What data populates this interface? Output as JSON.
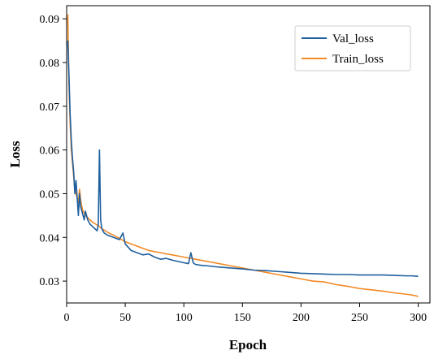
{
  "chart_data": {
    "type": "line",
    "title": "",
    "xlabel": "Epoch",
    "ylabel": "Loss",
    "xlim": [
      0,
      310
    ],
    "ylim": [
      0.025,
      0.093
    ],
    "xticks": [
      0,
      50,
      100,
      150,
      200,
      250,
      300
    ],
    "yticks": [
      0.03,
      0.04,
      0.05,
      0.06,
      0.07,
      0.08,
      0.09
    ],
    "grid": false,
    "legend_position": "top-right",
    "series": [
      {
        "name": "Val_loss",
        "color": "#1f5f9e",
        "x": [
          1,
          2,
          3,
          4,
          5,
          6,
          7,
          8,
          9,
          10,
          11,
          12,
          13,
          14,
          15,
          16,
          18,
          20,
          22,
          24,
          26,
          27,
          28,
          29,
          30,
          32,
          35,
          40,
          45,
          48,
          50,
          55,
          60,
          65,
          70,
          75,
          80,
          85,
          90,
          95,
          100,
          104,
          106,
          108,
          110,
          115,
          120,
          130,
          140,
          150,
          160,
          170,
          180,
          190,
          200,
          210,
          220,
          230,
          240,
          250,
          260,
          270,
          280,
          290,
          295,
          300
        ],
        "y": [
          0.085,
          0.077,
          0.068,
          0.062,
          0.058,
          0.055,
          0.05,
          0.053,
          0.049,
          0.045,
          0.05,
          0.047,
          0.046,
          0.045,
          0.044,
          0.046,
          0.044,
          0.043,
          0.0425,
          0.042,
          0.0415,
          0.043,
          0.06,
          0.044,
          0.042,
          0.041,
          0.0405,
          0.04,
          0.0395,
          0.041,
          0.0385,
          0.037,
          0.0365,
          0.036,
          0.0362,
          0.0355,
          0.035,
          0.0352,
          0.0348,
          0.0345,
          0.0342,
          0.034,
          0.0365,
          0.0342,
          0.0338,
          0.0336,
          0.0335,
          0.0332,
          0.033,
          0.0328,
          0.0325,
          0.0324,
          0.0322,
          0.032,
          0.0318,
          0.0317,
          0.0316,
          0.0315,
          0.0315,
          0.0314,
          0.0314,
          0.0314,
          0.0313,
          0.0312,
          0.0312,
          0.0311
        ]
      },
      {
        "name": "Train_loss",
        "color": "#f28a25",
        "x": [
          1,
          2,
          3,
          4,
          5,
          6,
          7,
          8,
          9,
          10,
          11,
          12,
          13,
          14,
          16,
          18,
          20,
          22,
          25,
          28,
          30,
          33,
          36,
          40,
          45,
          50,
          55,
          60,
          70,
          80,
          90,
          100,
          110,
          120,
          130,
          140,
          150,
          160,
          170,
          180,
          190,
          200,
          210,
          220,
          230,
          240,
          250,
          260,
          270,
          280,
          290,
          295,
          300
        ],
        "y": [
          0.091,
          0.075,
          0.066,
          0.06,
          0.057,
          0.054,
          0.051,
          0.05,
          0.049,
          0.048,
          0.051,
          0.0485,
          0.047,
          0.046,
          0.045,
          0.0445,
          0.044,
          0.0435,
          0.043,
          0.0425,
          0.042,
          0.0415,
          0.041,
          0.0405,
          0.0398,
          0.039,
          0.0385,
          0.038,
          0.037,
          0.0365,
          0.036,
          0.0355,
          0.035,
          0.0345,
          0.034,
          0.0335,
          0.033,
          0.0325,
          0.032,
          0.0315,
          0.031,
          0.0305,
          0.03,
          0.0298,
          0.0292,
          0.0288,
          0.0283,
          0.028,
          0.0277,
          0.0273,
          0.027,
          0.0268,
          0.0265
        ]
      }
    ]
  }
}
